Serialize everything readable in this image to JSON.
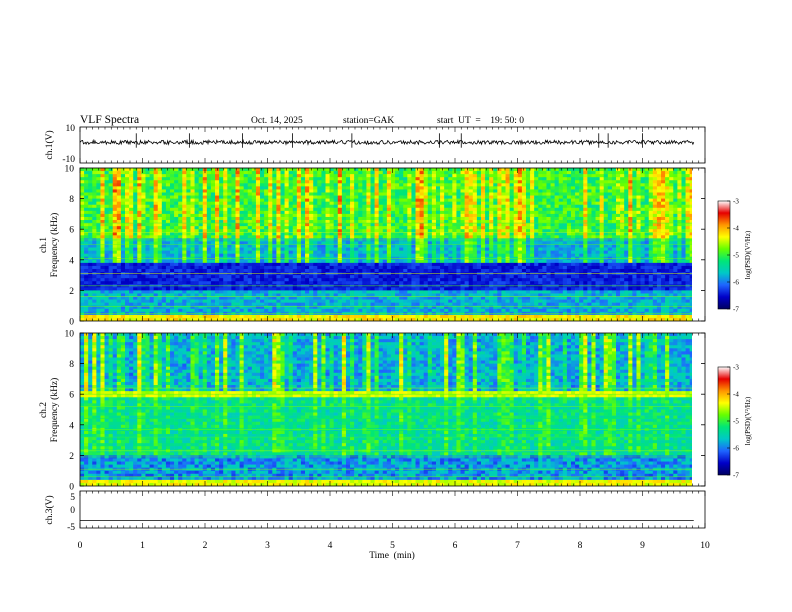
{
  "header": {
    "title": "VLF  Spectra",
    "date": "Oct. 14, 2025",
    "station": "station=GAK",
    "start": "start  UT  =    19: 50: 0"
  },
  "chart_data": [
    {
      "type": "line",
      "name": "ch1-waveform",
      "ylabel": "ch.1(V)",
      "ylim": [
        -10,
        10
      ],
      "yticks": [
        "10",
        "-10"
      ],
      "xlim": [
        0,
        10
      ],
      "level": 1.5,
      "trace_color": "#000000"
    },
    {
      "type": "heatmap",
      "name": "ch1-spectrogram",
      "ylabel_top": "ch.1",
      "ylabel": "Frequency  (kHz)",
      "ylim": [
        0,
        10
      ],
      "yticks": [
        "0",
        "2",
        "4",
        "6",
        "8",
        "10"
      ],
      "xlim": [
        0,
        10
      ],
      "data_end_min": 9.82
    },
    {
      "type": "heatmap",
      "name": "ch2-spectrogram",
      "ylabel_top": "ch.2",
      "ylabel": "Frequency  (kHz)",
      "ylim": [
        0,
        10
      ],
      "yticks": [
        "0",
        "2",
        "4",
        "6",
        "8",
        "10"
      ],
      "xlim": [
        0,
        10
      ],
      "data_end_min": 9.82
    },
    {
      "type": "line",
      "name": "ch3-waveform",
      "ylabel": "ch.3(V)",
      "ylim": [
        -5,
        5
      ],
      "yticks": [
        "5",
        "0",
        "-5"
      ],
      "xlim": [
        0,
        10
      ],
      "level": -3,
      "trace_color": "#000000"
    }
  ],
  "xaxis": {
    "label": "Time  (min)",
    "ticks": [
      "0",
      "1",
      "2",
      "3",
      "4",
      "5",
      "6",
      "7",
      "8",
      "9",
      "10"
    ]
  },
  "colorbar": {
    "label": "log(PSD)(V²/Hz)",
    "ticks": [
      "-3",
      "-4",
      "-5",
      "-6",
      "-7"
    ],
    "range": [
      -7,
      -3
    ],
    "colors": [
      "#000060",
      "#0000c8",
      "#1e64ff",
      "#00c8c8",
      "#00e678",
      "#64ff00",
      "#ffff00",
      "#ff9600",
      "#e60000",
      "#ffffff"
    ]
  }
}
